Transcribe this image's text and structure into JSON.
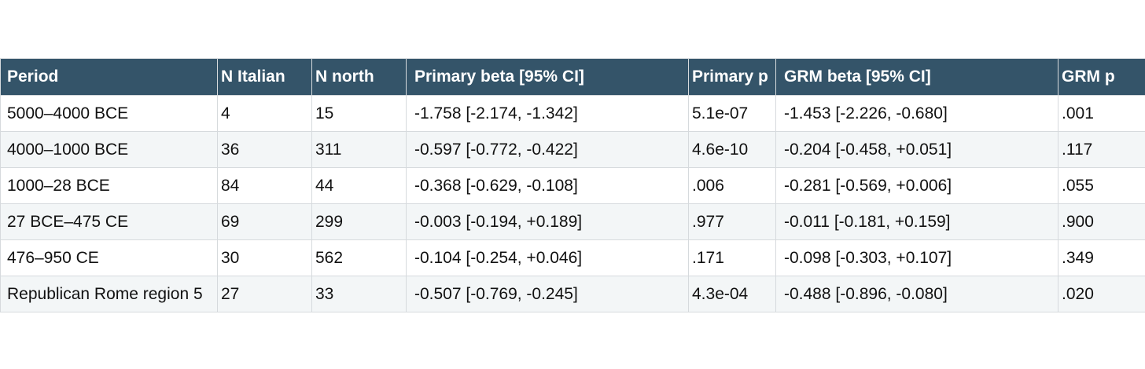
{
  "table": {
    "headers": [
      "Period",
      "N Italian",
      "N north",
      "Primary beta [95% CI]",
      "Primary p",
      "GRM beta [95% CI]",
      "GRM p"
    ],
    "rows": [
      [
        "5000–4000 BCE",
        " 4",
        " 15",
        "-1.758 [-2.174, -1.342]",
        "5.1e-07",
        "-1.453 [-2.226, -0.680]",
        ".001"
      ],
      [
        "4000–1000 BCE",
        "36",
        "311",
        "-0.597 [-0.772, -0.422]",
        "4.6e-10",
        "-0.204 [-0.458, +0.051]",
        ".117"
      ],
      [
        "1000–28 BCE",
        "84",
        " 44",
        "-0.368 [-0.629, -0.108]",
        ".006",
        "-0.281 [-0.569, +0.006]",
        ".055"
      ],
      [
        "27 BCE–475 CE",
        "69",
        "299",
        "-0.003 [-0.194, +0.189]",
        ".977",
        "-0.011 [-0.181, +0.159]",
        ".900"
      ],
      [
        "476–950 CE",
        "30",
        "562",
        "-0.104 [-0.254, +0.046]",
        ".171",
        "-0.098 [-0.303, +0.107]",
        ".349"
      ],
      [
        "Republican Rome region 5",
        "27",
        " 33",
        "-0.507 [-0.769, -0.245]",
        "4.3e-04",
        "-0.488 [-0.896, -0.080]",
        ".020"
      ]
    ]
  },
  "colors": {
    "header_bg": "#345469",
    "header_text": "#ffffff",
    "row_alt_bg": "#f3f6f7",
    "grid_line": "#d6dadd"
  }
}
